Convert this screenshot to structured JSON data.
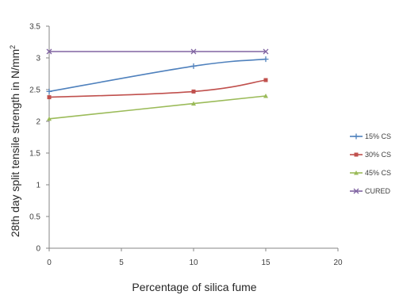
{
  "chart_data": {
    "type": "line",
    "title": "",
    "xlabel": "Percentage of silica fume",
    "ylabel": "28th day split tensile strength in N/mm",
    "ylabel_superscript": "2",
    "xlim": [
      0,
      20
    ],
    "ylim": [
      0,
      3.5
    ],
    "xticks": [
      "0",
      "5",
      "10",
      "15",
      "20"
    ],
    "yticks": [
      "0",
      "0.5",
      "1",
      "1.5",
      "2",
      "2.5",
      "3",
      "3.5"
    ],
    "grid": false,
    "legend_position": "right",
    "series": [
      {
        "name": "15% CS",
        "color": "#4f81bd",
        "marker": "plus",
        "x": [
          0,
          10,
          15
        ],
        "y": [
          2.47,
          2.87,
          2.98
        ]
      },
      {
        "name": "30% CS",
        "color": "#c0504d",
        "marker": "square",
        "x": [
          0,
          10,
          15
        ],
        "y": [
          2.38,
          2.47,
          2.65
        ]
      },
      {
        "name": "45% CS",
        "color": "#9bbb59",
        "marker": "triangle",
        "x": [
          0,
          10,
          15
        ],
        "y": [
          2.04,
          2.28,
          2.4
        ]
      },
      {
        "name": "CURED",
        "color": "#8064a2",
        "marker": "cross",
        "x": [
          0,
          10,
          15
        ],
        "y": [
          3.1,
          3.1,
          3.1
        ]
      }
    ]
  }
}
